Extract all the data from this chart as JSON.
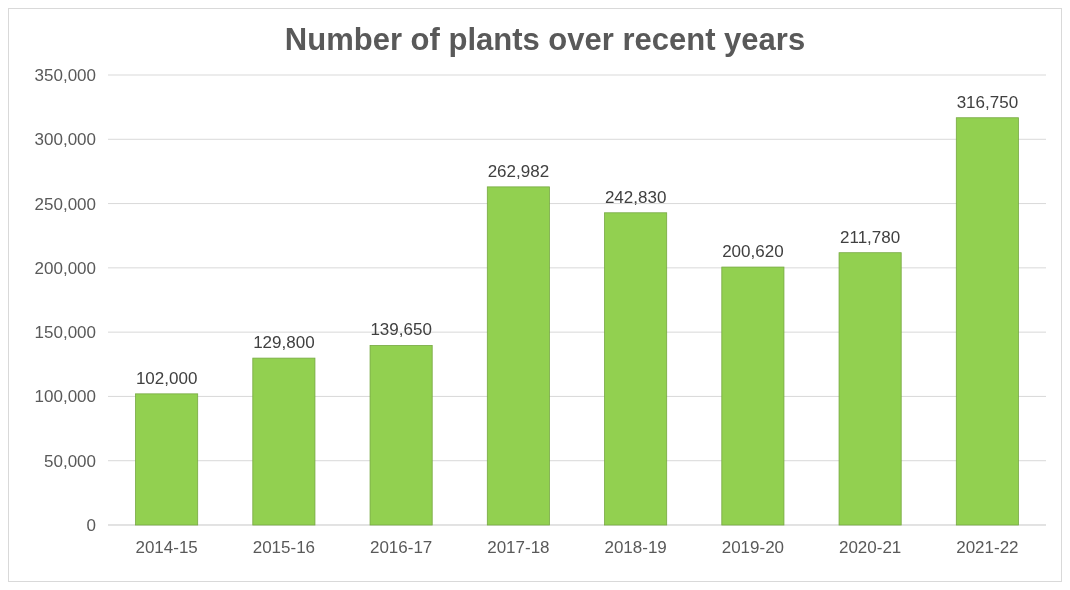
{
  "chart_data": {
    "type": "bar",
    "title": "Number of plants over recent years",
    "categories": [
      "2014-15",
      "2015-16",
      "2016-17",
      "2017-18",
      "2018-19",
      "2019-20",
      "2020-21",
      "2021-22"
    ],
    "values": [
      102000,
      129800,
      139650,
      262982,
      242830,
      200620,
      211780,
      316750
    ],
    "value_labels": [
      "102,000",
      "129,800",
      "139,650",
      "262,982",
      "242,830",
      "200,620",
      "211,780",
      "316,750"
    ],
    "color": "#92d050",
    "ylim": [
      0,
      350000
    ],
    "yticks": [
      {
        "value": 0,
        "label": "0"
      },
      {
        "value": 50000,
        "label": "50,000"
      },
      {
        "value": 100000,
        "label": "100,000"
      },
      {
        "value": 150000,
        "label": "150,000"
      },
      {
        "value": 200000,
        "label": "200,000"
      },
      {
        "value": 250000,
        "label": "250,000"
      },
      {
        "value": 300000,
        "label": "300,000"
      },
      {
        "value": 350000,
        "label": "350,000"
      }
    ],
    "grid": true
  }
}
